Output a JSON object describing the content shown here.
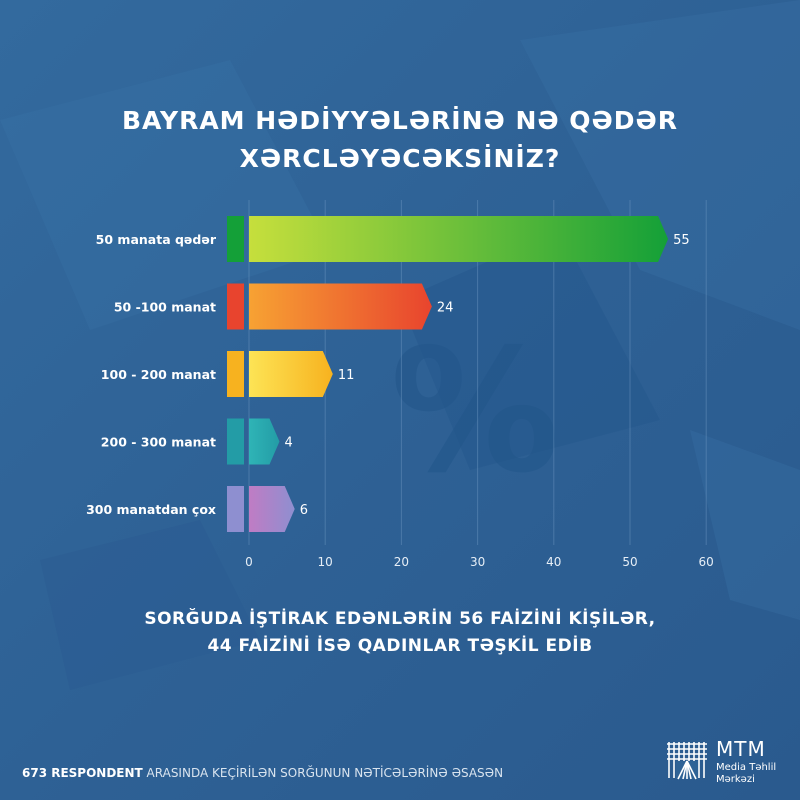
{
  "title": {
    "line1": "BAYRAM HƏDİYYƏLƏRİNƏ NƏ QƏDƏR",
    "line2": "XƏRCLƏYƏCƏKSİNİZ?"
  },
  "chart_data": {
    "type": "bar",
    "orientation": "horizontal",
    "categories": [
      "50 manata qədər",
      "50 -100 manat",
      "100 - 200 manat",
      "200 - 300 manat",
      "300 manatdan çox"
    ],
    "values": [
      55,
      24,
      11,
      4,
      6
    ],
    "xlim": [
      0,
      60
    ],
    "xticks": [
      0,
      10,
      20,
      30,
      40,
      50,
      60
    ],
    "grid": true,
    "colors": [
      [
        "#c6df3c",
        "#14a038"
      ],
      [
        "#f7a233",
        "#e8442e"
      ],
      [
        "#fde455",
        "#f7b21f"
      ],
      [
        "#2fb4b6",
        "#239ca6"
      ],
      [
        "#c07cc4",
        "#8e8fd0"
      ]
    ]
  },
  "subtitle": {
    "line1": "SORĞUDA İŞTİRAK EDƏNLƏRİN 56 FAİZİNİ KİŞİLƏR,",
    "line2": "44 FAİZİNİ İSƏ QADINLAR TƏŞKİL EDİB"
  },
  "footer": {
    "bold": "673 RESPONDENT",
    "rest": " ARASINDA KEÇİRİLƏN SORĞUNUN NƏTİCƏLƏRİNƏ ƏSASƏN"
  },
  "logo": {
    "name": "MTM",
    "line1": "Media Təhlil",
    "line2": "Mərkəzi"
  }
}
